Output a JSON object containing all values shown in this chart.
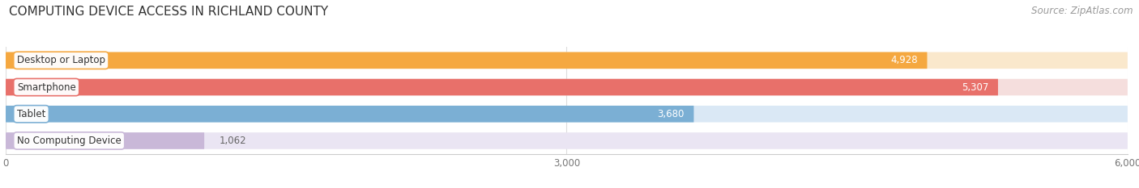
{
  "title": "COMPUTING DEVICE ACCESS IN RICHLAND COUNTY",
  "source": "Source: ZipAtlas.com",
  "categories": [
    "Desktop or Laptop",
    "Smartphone",
    "Tablet",
    "No Computing Device"
  ],
  "values": [
    4928,
    5307,
    3680,
    1062
  ],
  "bar_colors": [
    "#F5A840",
    "#E8706A",
    "#7BAFD4",
    "#C9B8D8"
  ],
  "bar_bg_colors": [
    "#FAE8CC",
    "#F5DEDD",
    "#DAE8F5",
    "#EAE5F3"
  ],
  "xlim": [
    0,
    6000
  ],
  "xticks": [
    0,
    3000,
    6000
  ],
  "background_color": "#ffffff",
  "figsize": [
    14.06,
    2.33
  ],
  "dpi": 100,
  "title_fontsize": 11,
  "label_fontsize": 8.5,
  "value_fontsize": 8.5,
  "source_fontsize": 8.5
}
